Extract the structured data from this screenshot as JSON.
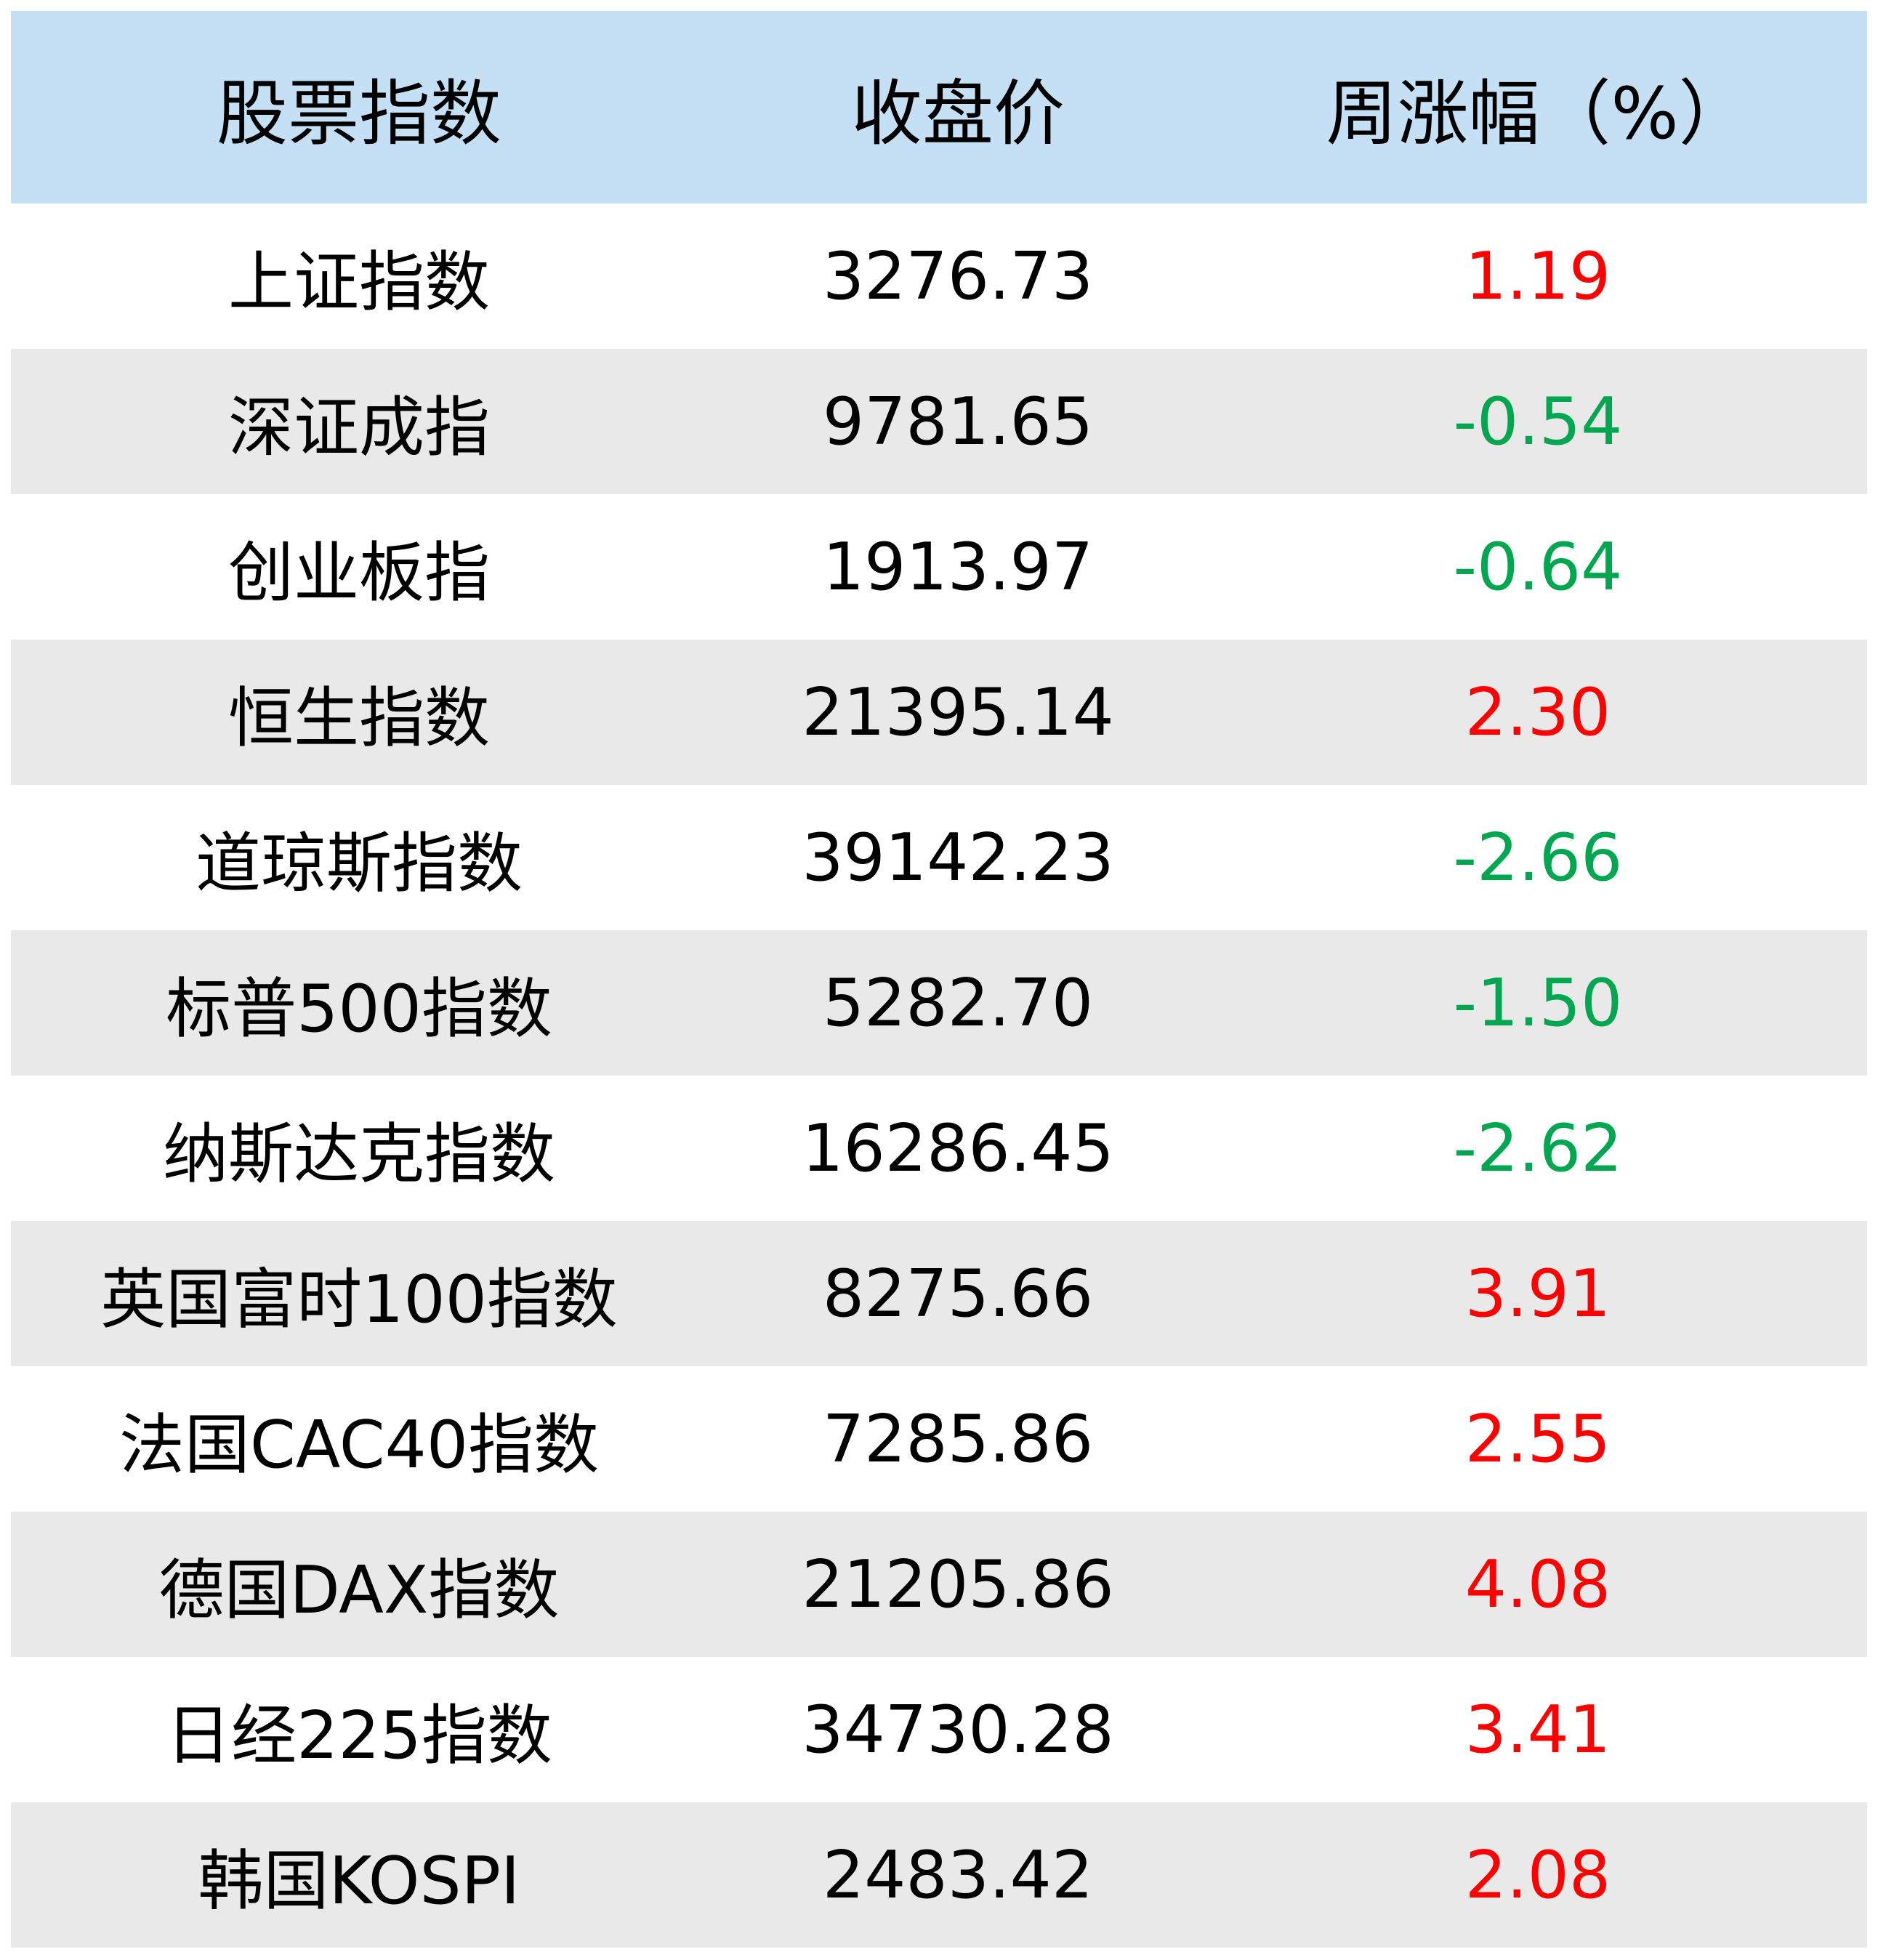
{
  "table": {
    "headers": [
      "股票指数",
      "收盘价",
      "周涨幅（%）"
    ],
    "colors": {
      "header_bg": "#c5e0f4",
      "stripe_bg": "#e9e9e9",
      "up": "#ff0000",
      "down": "#00a650"
    },
    "rows": [
      {
        "name": "上证指数",
        "close": "3276.73",
        "change": "1.19",
        "dir": "up"
      },
      {
        "name": "深证成指",
        "close": "9781.65",
        "change": "-0.54",
        "dir": "down"
      },
      {
        "name": "创业板指",
        "close": "1913.97",
        "change": "-0.64",
        "dir": "down"
      },
      {
        "name": "恒生指数",
        "close": "21395.14",
        "change": "2.30",
        "dir": "up"
      },
      {
        "name": "道琼斯指数",
        "close": "39142.23",
        "change": "-2.66",
        "dir": "down"
      },
      {
        "name": "标普500指数",
        "close": "5282.70",
        "change": "-1.50",
        "dir": "down"
      },
      {
        "name": "纳斯达克指数",
        "close": "16286.45",
        "change": "-2.62",
        "dir": "down"
      },
      {
        "name": "英国富时100指数",
        "close": "8275.66",
        "change": "3.91",
        "dir": "up"
      },
      {
        "name": "法国CAC40指数",
        "close": "7285.86",
        "change": "2.55",
        "dir": "up"
      },
      {
        "name": "德国DAX指数",
        "close": "21205.86",
        "change": "4.08",
        "dir": "up"
      },
      {
        "name": "日经225指数",
        "close": "34730.28",
        "change": "3.41",
        "dir": "up"
      },
      {
        "name": "韩国KOSPI",
        "close": "2483.42",
        "change": "2.08",
        "dir": "up"
      }
    ]
  }
}
